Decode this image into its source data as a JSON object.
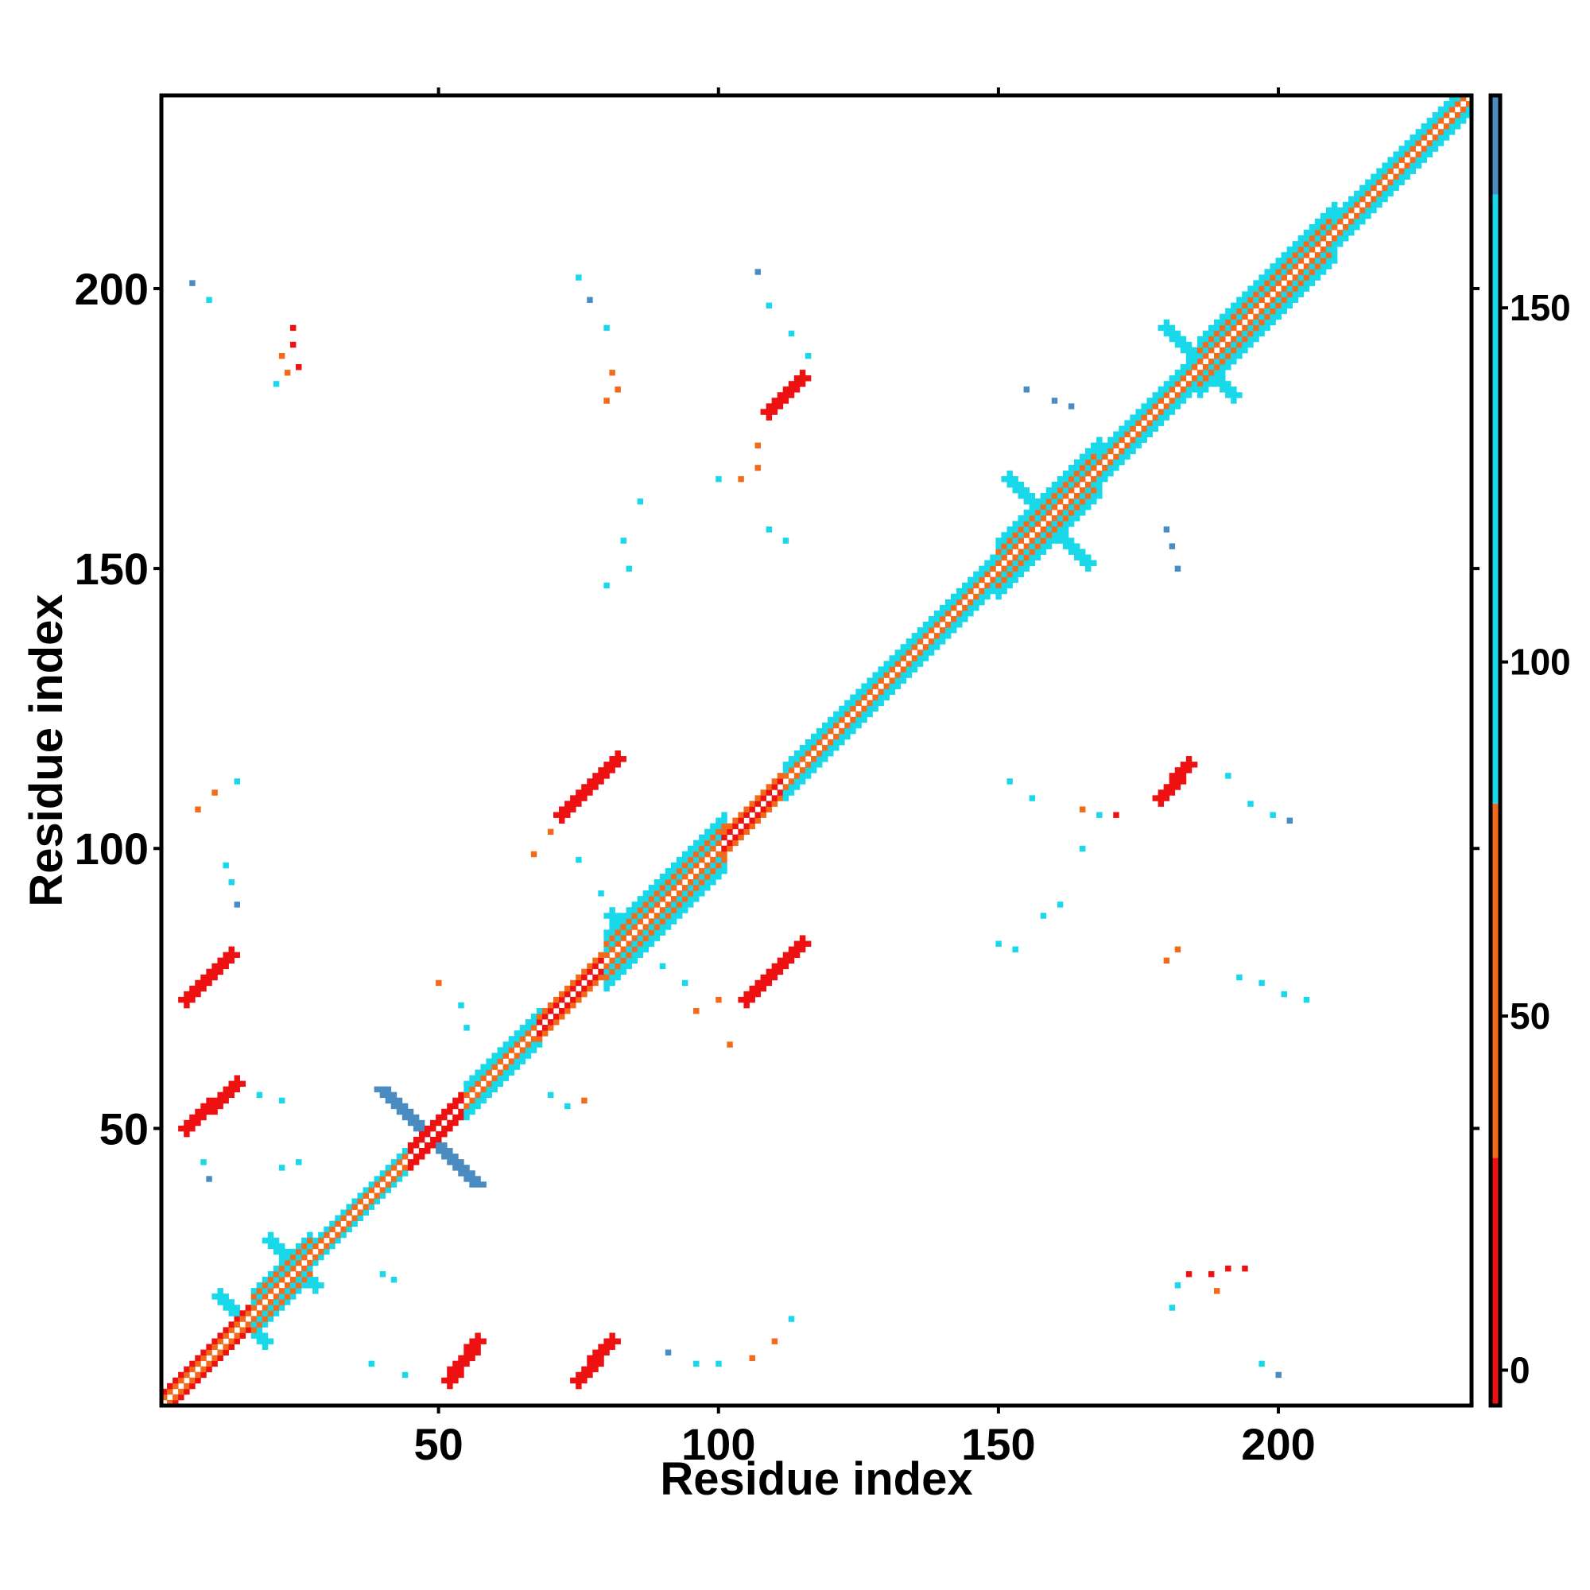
{
  "chart_data": {
    "type": "heatmap",
    "title": "",
    "xlabel": "Residue index",
    "ylabel": "Residue index",
    "xlim": [
      1,
      234
    ],
    "ylim": [
      1,
      234
    ],
    "xticks": [
      50,
      100,
      150,
      200
    ],
    "yticks": [
      50,
      100,
      150,
      200
    ],
    "grid": false,
    "colorbar": {
      "range": [
        -5,
        180
      ],
      "ticks": [
        0,
        50,
        100,
        150
      ],
      "bands": [
        {
          "from": -5,
          "to": 30,
          "color": "#ee1111"
        },
        {
          "from": 30,
          "to": 80,
          "color": "#f36a1a"
        },
        {
          "from": 80,
          "to": 166,
          "color": "#19d8ea"
        },
        {
          "from": 166,
          "to": 180,
          "color": "#4a8bc2"
        }
      ]
    },
    "palette": {
      "red": "#ee1111",
      "orange": "#f36a1a",
      "lightorange": "#f6a21a",
      "cyan": "#19d8ea",
      "steel": "#4a8bc2",
      "frame": "#000000"
    },
    "diagonal_segments": [
      {
        "range": [
          1,
          11
        ],
        "band": 1.5,
        "inner": "orange",
        "outer": "red"
      },
      {
        "range": [
          11,
          17
        ],
        "band": 2,
        "inner": "orange",
        "outer": "red"
      },
      {
        "range": [
          17,
          27
        ],
        "band": 4,
        "inner": "orange",
        "outer": "cyan"
      },
      {
        "range": [
          27,
          45
        ],
        "band": 2,
        "inner": "orange",
        "outer": "cyan"
      },
      {
        "range": [
          45,
          55
        ],
        "band": 1.5,
        "inner": "red",
        "outer": "red"
      },
      {
        "range": [
          55,
          68
        ],
        "band": 2.5,
        "inner": "orange",
        "outer": "cyan"
      },
      {
        "range": [
          68,
          80
        ],
        "band": 2,
        "inner": "red",
        "outer": "orange"
      },
      {
        "range": [
          80,
          101
        ],
        "band": 5,
        "inner": "orange",
        "outer": "cyan"
      },
      {
        "range": [
          101,
          112
        ],
        "band": 2,
        "inner": "red",
        "outer": "orange"
      },
      {
        "range": [
          112,
          150
        ],
        "band": 2.5,
        "inner": "orange",
        "outer": "cyan"
      },
      {
        "range": [
          150,
          168
        ],
        "band": 5,
        "inner": "orange",
        "outer": "cyan"
      },
      {
        "range": [
          168,
          186
        ],
        "band": 2.5,
        "inner": "orange",
        "outer": "cyan"
      },
      {
        "range": [
          186,
          210
        ],
        "band": 5,
        "inner": "orange",
        "outer": "cyan"
      },
      {
        "range": [
          210,
          234
        ],
        "band": 3,
        "inner": "orange",
        "outer": "cyan"
      }
    ],
    "strips": [
      {
        "x": [
          5,
          14
        ],
        "y": [
          50,
          58
        ],
        "color": "red"
      },
      {
        "x": [
          5,
          13
        ],
        "y": [
          73,
          81
        ],
        "color": "red"
      },
      {
        "x": [
          52,
          57
        ],
        "y": [
          5,
          12
        ],
        "color": "red"
      },
      {
        "x": [
          75,
          81
        ],
        "y": [
          5,
          12
        ],
        "color": "red"
      },
      {
        "x": [
          105,
          115
        ],
        "y": [
          73,
          83
        ],
        "color": "red"
      },
      {
        "x": [
          72,
          82
        ],
        "y": [
          106,
          116
        ],
        "color": "red"
      },
      {
        "x": [
          109,
          115
        ],
        "y": [
          178,
          184
        ],
        "color": "red"
      },
      {
        "x": [
          179,
          184
        ],
        "y": [
          109,
          115
        ],
        "color": "red"
      },
      {
        "x": [
          40,
          57
        ],
        "y": [
          57,
          40
        ],
        "color": "steel"
      },
      {
        "x": [
          11,
          19
        ],
        "y": [
          20,
          12
        ],
        "color": "cyan"
      },
      {
        "x": [
          20,
          28
        ],
        "y": [
          30,
          22
        ],
        "color": "cyan"
      },
      {
        "x": [
          81,
          86
        ],
        "y": [
          88,
          82
        ],
        "color": "cyan"
      },
      {
        "x": [
          152,
          166
        ],
        "y": [
          166,
          151
        ],
        "color": "cyan"
      },
      {
        "x": [
          180,
          192
        ],
        "y": [
          193,
          181
        ],
        "color": "cyan"
      }
    ],
    "dots": [
      [
        6,
        201,
        "steel"
      ],
      [
        9,
        198,
        "cyan"
      ],
      [
        7,
        107,
        "orange"
      ],
      [
        10,
        110,
        "orange"
      ],
      [
        14,
        112,
        "cyan"
      ],
      [
        12,
        97,
        "cyan"
      ],
      [
        13,
        94,
        "cyan"
      ],
      [
        14,
        90,
        "steel"
      ],
      [
        8,
        44,
        "cyan"
      ],
      [
        9,
        41,
        "steel"
      ],
      [
        22,
        43,
        "cyan"
      ],
      [
        25,
        44,
        "cyan"
      ],
      [
        18,
        56,
        "cyan"
      ],
      [
        22,
        55,
        "cyan"
      ],
      [
        40,
        24,
        "cyan"
      ],
      [
        42,
        23,
        "cyan"
      ],
      [
        38,
        8,
        "cyan"
      ],
      [
        44,
        6,
        "cyan"
      ],
      [
        50,
        76,
        "orange"
      ],
      [
        54,
        72,
        "cyan"
      ],
      [
        55,
        68,
        "cyan"
      ],
      [
        70,
        56,
        "cyan"
      ],
      [
        76,
        55,
        "orange"
      ],
      [
        73,
        54,
        "cyan"
      ],
      [
        75,
        202,
        "cyan"
      ],
      [
        77,
        198,
        "steel"
      ],
      [
        80,
        193,
        "cyan"
      ],
      [
        81,
        185,
        "orange"
      ],
      [
        80,
        180,
        "orange"
      ],
      [
        82,
        182,
        "orange"
      ],
      [
        86,
        162,
        "cyan"
      ],
      [
        83,
        155,
        "cyan"
      ],
      [
        80,
        147,
        "cyan"
      ],
      [
        84,
        150,
        "cyan"
      ],
      [
        70,
        103,
        "orange"
      ],
      [
        67,
        99,
        "orange"
      ],
      [
        75,
        98,
        "cyan"
      ],
      [
        79,
        92,
        "cyan"
      ],
      [
        90,
        79,
        "cyan"
      ],
      [
        94,
        76,
        "cyan"
      ],
      [
        100,
        73,
        "orange"
      ],
      [
        96,
        71,
        "orange"
      ],
      [
        102,
        65,
        "orange"
      ],
      [
        91,
        10,
        "steel"
      ],
      [
        96,
        8,
        "cyan"
      ],
      [
        100,
        8,
        "cyan"
      ],
      [
        106,
        9,
        "orange"
      ],
      [
        110,
        12,
        "orange"
      ],
      [
        113,
        16,
        "cyan"
      ],
      [
        107,
        203,
        "steel"
      ],
      [
        109,
        197,
        "cyan"
      ],
      [
        113,
        192,
        "cyan"
      ],
      [
        116,
        188,
        "cyan"
      ],
      [
        104,
        166,
        "orange"
      ],
      [
        107,
        168,
        "orange"
      ],
      [
        107,
        172,
        "orange"
      ],
      [
        109,
        157,
        "cyan"
      ],
      [
        112,
        155,
        "cyan"
      ],
      [
        100,
        166,
        "cyan"
      ],
      [
        150,
        83,
        "cyan"
      ],
      [
        153,
        82,
        "cyan"
      ],
      [
        158,
        88,
        "cyan"
      ],
      [
        161,
        90,
        "cyan"
      ],
      [
        152,
        112,
        "cyan"
      ],
      [
        156,
        109,
        "cyan"
      ],
      [
        165,
        107,
        "orange"
      ],
      [
        168,
        106,
        "cyan"
      ],
      [
        171,
        106,
        "red"
      ],
      [
        165,
        100,
        "cyan"
      ],
      [
        155,
        182,
        "steel"
      ],
      [
        160,
        180,
        "steel"
      ],
      [
        163,
        179,
        "steel"
      ],
      [
        180,
        157,
        "steel"
      ],
      [
        181,
        154,
        "steel"
      ],
      [
        182,
        150,
        "steel"
      ],
      [
        180,
        80,
        "orange"
      ],
      [
        182,
        82,
        "orange"
      ],
      [
        191,
        113,
        "cyan"
      ],
      [
        195,
        108,
        "cyan"
      ],
      [
        199,
        106,
        "cyan"
      ],
      [
        202,
        105,
        "steel"
      ],
      [
        193,
        77,
        "cyan"
      ],
      [
        197,
        76,
        "cyan"
      ],
      [
        201,
        74,
        "cyan"
      ],
      [
        205,
        73,
        "cyan"
      ],
      [
        182,
        22,
        "cyan"
      ],
      [
        184,
        24,
        "red"
      ],
      [
        188,
        24,
        "red"
      ],
      [
        191,
        25,
        "red"
      ],
      [
        194,
        25,
        "red"
      ],
      [
        189,
        21,
        "orange"
      ],
      [
        181,
        18,
        "cyan"
      ],
      [
        197,
        8,
        "cyan"
      ],
      [
        200,
        6,
        "steel"
      ],
      [
        21,
        183,
        "cyan"
      ],
      [
        23,
        185,
        "orange"
      ],
      [
        25,
        186,
        "red"
      ],
      [
        24,
        190,
        "red"
      ],
      [
        24,
        193,
        "red"
      ],
      [
        22,
        188,
        "orange"
      ]
    ]
  }
}
